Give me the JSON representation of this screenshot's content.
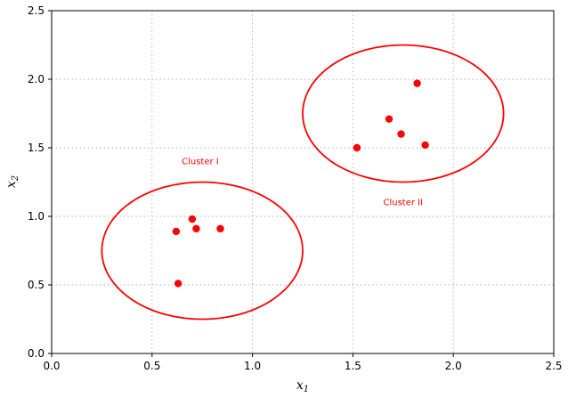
{
  "chart_data": {
    "type": "scatter",
    "title": "",
    "xlabel": "x",
    "xlabel_sub": "1",
    "ylabel": "x",
    "ylabel_sub": "2",
    "xlim": [
      0,
      2.5
    ],
    "ylim": [
      0,
      2.5
    ],
    "xticks": [
      0,
      0.5,
      1,
      1.5,
      2,
      2.5
    ],
    "yticks": [
      0,
      0.5,
      1,
      1.5,
      2,
      2.5
    ],
    "xtick_labels": [
      "0.0",
      "0.5",
      "1.0",
      "1.5",
      "2.0",
      "2.5"
    ],
    "ytick_labels": [
      "0.0",
      "0.5",
      "1.0",
      "1.5",
      "2.0",
      "2.5"
    ],
    "grid": true,
    "grid_style": "dotted",
    "point_color": "#ff0000",
    "series": [
      {
        "points": [
          {
            "x": 0.62,
            "y": 0.89
          },
          {
            "x": 0.7,
            "y": 0.98
          },
          {
            "x": 0.72,
            "y": 0.91
          },
          {
            "x": 0.84,
            "y": 0.91
          },
          {
            "x": 0.63,
            "y": 0.51
          },
          {
            "x": 1.82,
            "y": 1.97
          },
          {
            "x": 1.68,
            "y": 1.71
          },
          {
            "x": 1.74,
            "y": 1.6
          },
          {
            "x": 1.86,
            "y": 1.52
          },
          {
            "x": 1.52,
            "y": 1.5
          }
        ]
      }
    ],
    "clusters": [
      {
        "label": "Cluster I",
        "center": [
          0.75,
          0.75
        ],
        "radius": [
          0.5,
          0.5
        ],
        "label_pos": [
          0.74,
          1.4
        ],
        "color": "#ff0000"
      },
      {
        "label": "Cluster II",
        "center": [
          1.75,
          1.75
        ],
        "radius": [
          0.5,
          0.5
        ],
        "label_pos": [
          1.75,
          1.1
        ],
        "color": "#ff0000"
      }
    ]
  }
}
